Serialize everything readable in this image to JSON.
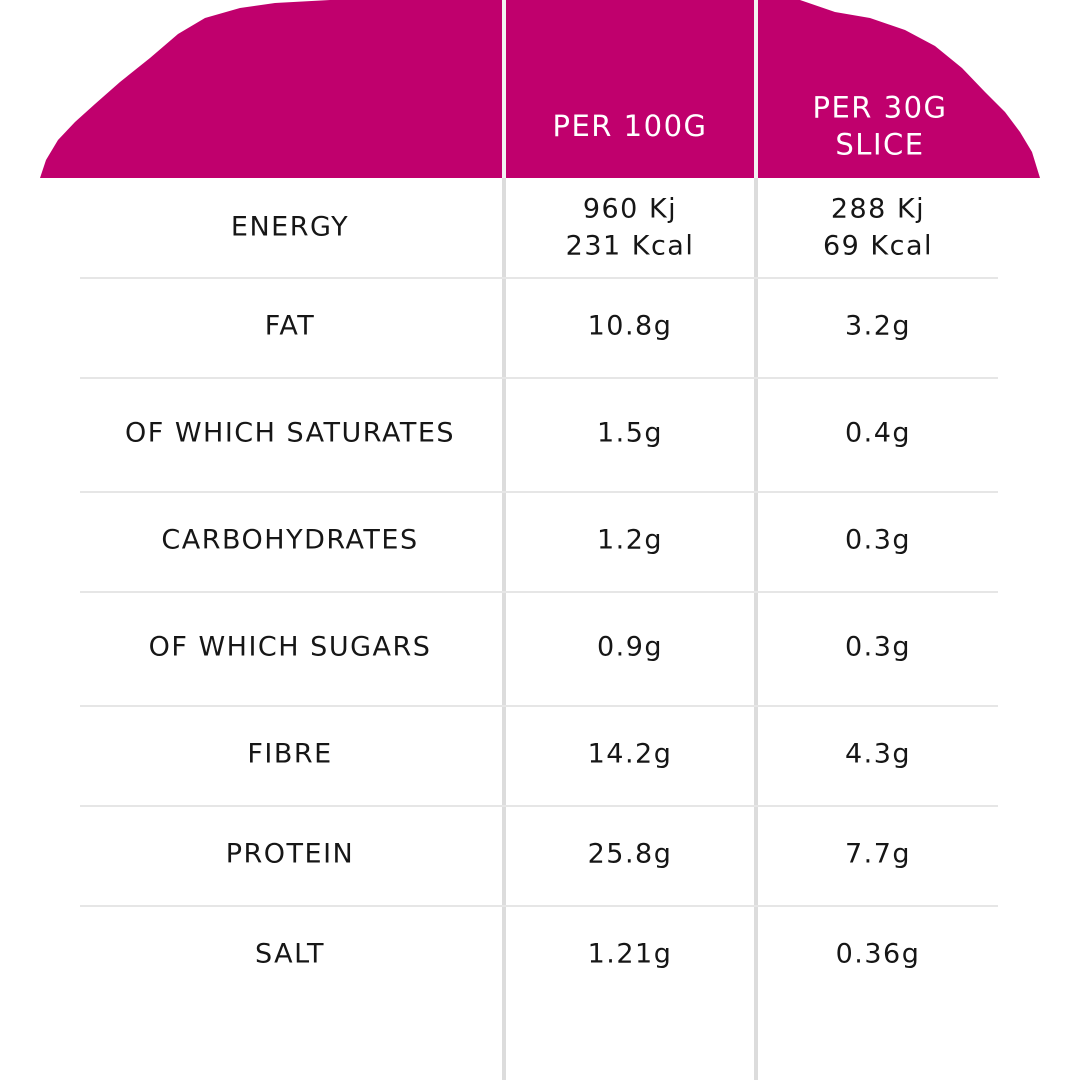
{
  "table": {
    "header": [
      "PER 100G",
      [
        "PER 30G",
        "SLICE"
      ]
    ],
    "rows": [
      {
        "label": "ENERGY",
        "per100": [
          "960 Kj",
          "231 Kcal"
        ],
        "perSlice": [
          "288 Kj",
          "69 Kcal"
        ]
      },
      {
        "label": "FAT",
        "per100": "10.8g",
        "perSlice": "3.2g"
      },
      {
        "label": "OF WHICH SATURATES",
        "per100": "1.5g",
        "perSlice": "0.4g"
      },
      {
        "label": "CARBOHYDRATES",
        "per100": "1.2g",
        "perSlice": "0.3g"
      },
      {
        "label": "OF WHICH SUGARS",
        "per100": "0.9g",
        "perSlice": "0.3g"
      },
      {
        "label": "FIBRE",
        "per100": "14.2g",
        "perSlice": "4.3g"
      },
      {
        "label": "PROTEIN",
        "per100": "25.8g",
        "perSlice": "7.7g"
      },
      {
        "label": "SALT",
        "per100": "1.21g",
        "perSlice": "0.36g"
      }
    ]
  }
}
